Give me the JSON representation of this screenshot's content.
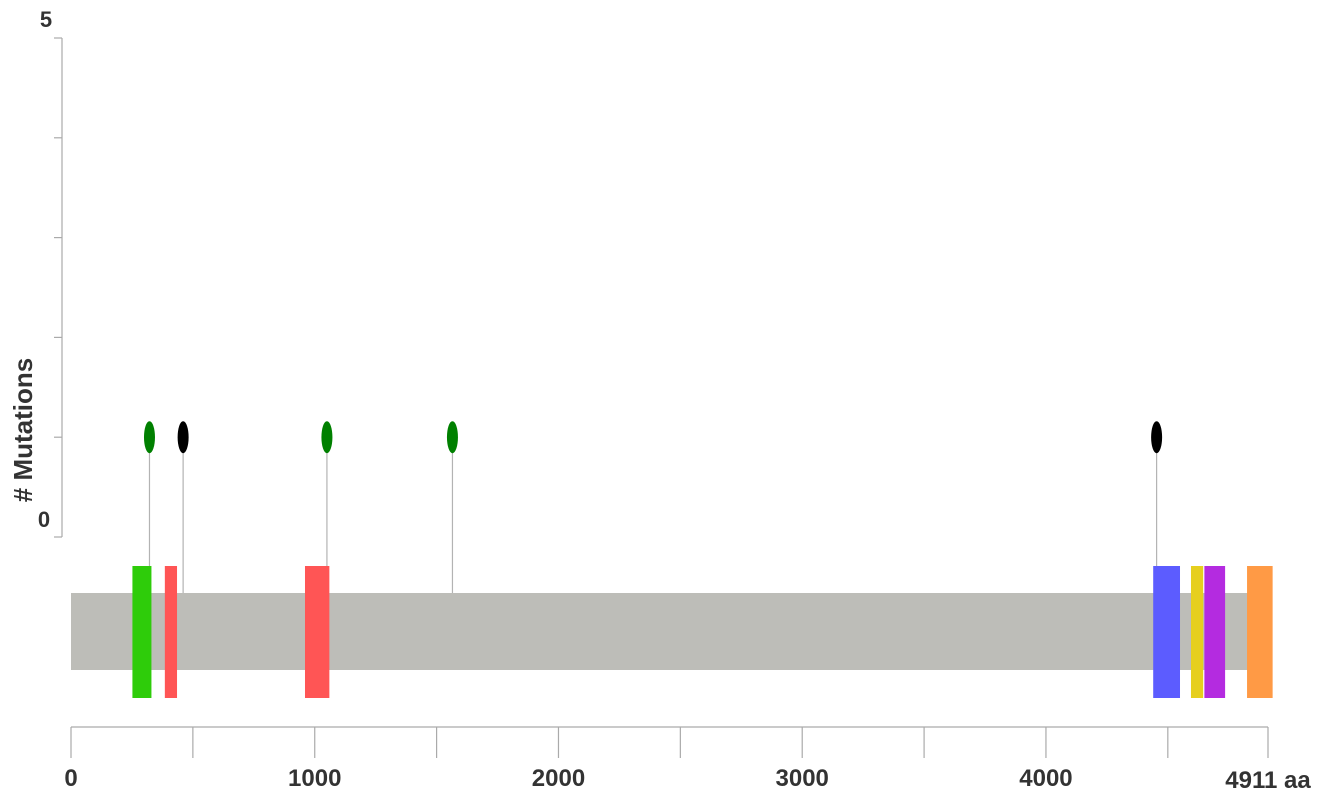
{
  "chart_data": {
    "type": "lollipop",
    "protein_length": 4911,
    "length_unit": "aa",
    "ylabel": "# Mutations",
    "ylim": [
      0,
      5
    ],
    "y_axis_labels": [
      "5",
      "0"
    ],
    "x_ticks": [
      0,
      1000,
      2000,
      3000,
      4000
    ],
    "x_tick_labels": [
      "0",
      "1000",
      "2000",
      "3000",
      "4000"
    ],
    "end_label": "4911 aa",
    "minor_ticks": [
      500,
      1500,
      2500,
      3500,
      4500
    ],
    "mutations": [
      {
        "position": 322,
        "count": 1,
        "color": "#008000"
      },
      {
        "position": 460,
        "count": 1,
        "color": "#000000"
      },
      {
        "position": 1050,
        "count": 1,
        "color": "#008000"
      },
      {
        "position": 1565,
        "count": 1,
        "color": "#008000"
      },
      {
        "position": 4454,
        "count": 1,
        "color": "#000000"
      }
    ],
    "domains": [
      {
        "start": 252,
        "end": 330,
        "color": "#2ecc0a"
      },
      {
        "start": 385,
        "end": 435,
        "color": "#ff5555"
      },
      {
        "start": 960,
        "end": 1060,
        "color": "#ff5555"
      },
      {
        "start": 4440,
        "end": 4550,
        "color": "#5c5cff"
      },
      {
        "start": 4595,
        "end": 4645,
        "color": "#e6cf1e"
      },
      {
        "start": 4650,
        "end": 4735,
        "color": "#b42be0"
      },
      {
        "start": 4825,
        "end": 4930,
        "color": "#ff9a45"
      }
    ],
    "colors": {
      "backbone": "#bdbdb8",
      "axis": "#aaaaaa",
      "stem": "#b3b3b3",
      "text": "#333333"
    }
  }
}
